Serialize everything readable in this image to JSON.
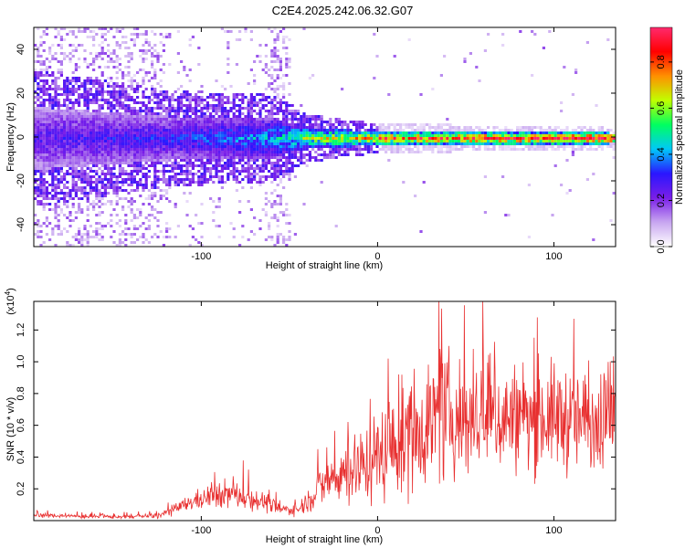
{
  "figure": {
    "title": "C2E4.2025.242.06.32.G07"
  },
  "chart_data": [
    {
      "type": "heatmap",
      "title": "C2E4.2025.242.06.32.G07",
      "xlabel": "Height of straight line (km)",
      "ylabel": "Frequency (Hz)",
      "xlim": [
        -195,
        135
      ],
      "ylim": [
        -50,
        50
      ],
      "xticks": [
        -100,
        0,
        100
      ],
      "yticks": [
        -40,
        -20,
        0,
        20,
        40
      ],
      "colorbar": {
        "label": "Normalized spectral amplitude",
        "range": [
          0,
          0.95
        ],
        "ticks": [
          "0.0",
          "0.2",
          "0.4",
          "0.6",
          "0.8"
        ],
        "tick_values": [
          0.0,
          0.2,
          0.4,
          0.6,
          0.8
        ],
        "colors": [
          "#ffffff",
          "#c8a6f0",
          "#7a1ee8",
          "#2a16ff",
          "#00c8f8",
          "#00ff60",
          "#c0ff00",
          "#ff9000",
          "#ff0000",
          "#ff2a6e"
        ]
      },
      "band": {
        "description_points": [
          {
            "x": -190,
            "spread_hz": 14,
            "amplitude": 0.25
          },
          {
            "x": -120,
            "spread_hz": 10,
            "amplitude": 0.3
          },
          {
            "x": -60,
            "spread_hz": 9,
            "amplitude": 0.4
          },
          {
            "x": -40,
            "spread_hz": 5,
            "amplitude": 0.55
          },
          {
            "x": 0,
            "spread_hz": 3,
            "amplitude": 0.75
          },
          {
            "x": 130,
            "spread_hz": 2.5,
            "amplitude": 0.9
          }
        ]
      }
    },
    {
      "type": "line",
      "xlabel": "Height of straight line (km)",
      "ylabel": "SNR (10 * v/v)",
      "y_multiplier": "(x10",
      "y_multiplier_exp": "4",
      "xlim": [
        -195,
        135
      ],
      "ylim": [
        0,
        13800
      ],
      "xticks": [
        -100,
        0,
        100
      ],
      "yticks": [
        0.2,
        0.4,
        0.6,
        0.8,
        1.0,
        1.2
      ],
      "color": "#e83030",
      "series": [
        {
          "name": "SNR",
          "x": [
            -195,
            -180,
            -160,
            -140,
            -125,
            -115,
            -105,
            -95,
            -85,
            -75,
            -65,
            -55,
            -45,
            -35,
            -25,
            -15,
            -5,
            5,
            15,
            25,
            35,
            45,
            55,
            65,
            75,
            85,
            95,
            105,
            115,
            125,
            135
          ],
          "mean": [
            350,
            300,
            250,
            250,
            300,
            700,
            1200,
            1500,
            1700,
            1500,
            1200,
            700,
            700,
            1800,
            2800,
            3200,
            3600,
            4500,
            5000,
            6000,
            6500,
            6500,
            6300,
            6400,
            6500,
            6400,
            6500,
            6500,
            6200,
            6300,
            5800
          ],
          "amp": [
            150,
            150,
            150,
            150,
            200,
            400,
            600,
            900,
            1000,
            900,
            700,
            400,
            400,
            1200,
            2000,
            2500,
            2800,
            3500,
            4000,
            4300,
            4500,
            4200,
            3800,
            3800,
            3800,
            3600,
            3600,
            3800,
            3600,
            3500,
            2500
          ]
        }
      ]
    }
  ]
}
